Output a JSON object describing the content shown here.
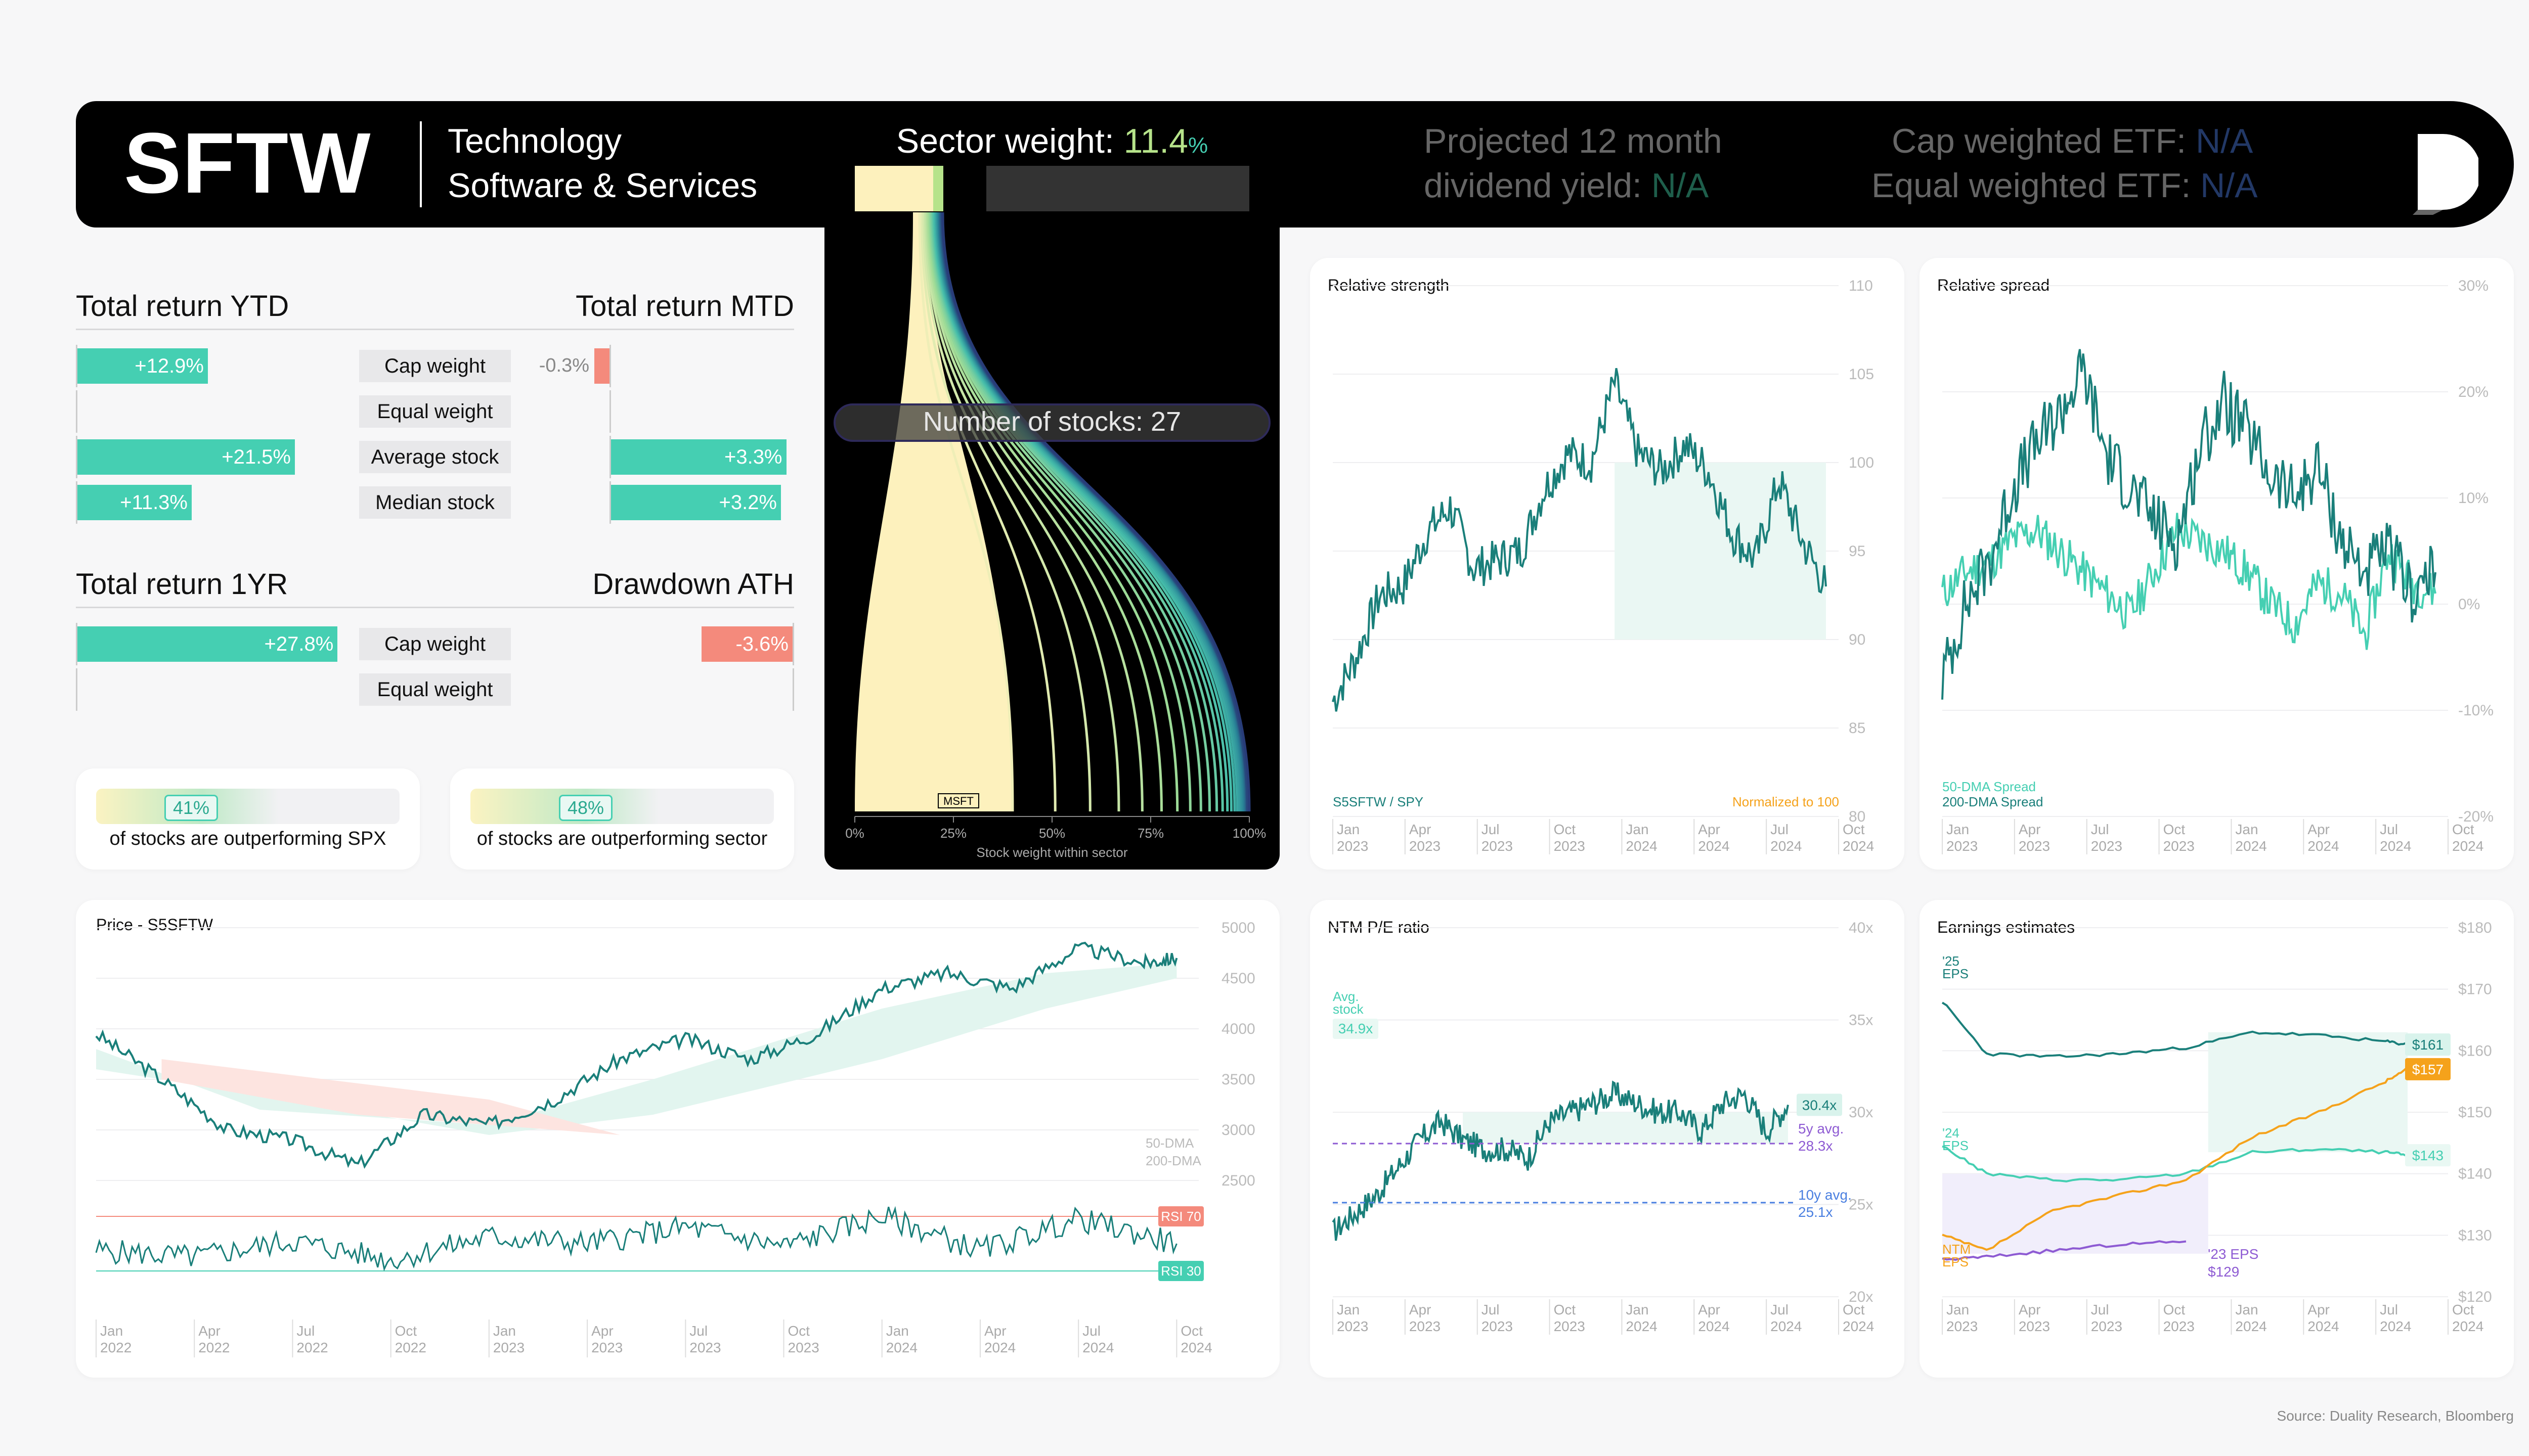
{
  "header": {
    "ticker": "SFTW",
    "sector": "Technology",
    "industry": "Software & Services",
    "sector_weight_label": "Sector weight:",
    "sector_weight_value": "11.4",
    "sector_weight_unit": "%",
    "sector_weight_fraction": 0.114,
    "dividend_line1": "Projected 12 month",
    "dividend_line2": "dividend yield:",
    "dividend_value": "N/A",
    "cap_etf_label": "Cap weighted ETF:",
    "cap_etf_value": "N/A",
    "eq_etf_label": "Equal weighted ETF:",
    "eq_etf_value": "N/A"
  },
  "returns": {
    "ytd_title": "Total return YTD",
    "mtd_title": "Total return MTD",
    "oneyr_title": "Total return 1YR",
    "ath_title": "Drawdown ATH",
    "rows": [
      {
        "label": "Cap weight",
        "ytd": "+12.9%",
        "ytd_value": 12.9,
        "mtd": "-0.3%",
        "mtd_value": -0.3
      },
      {
        "label": "Equal weight",
        "ytd": "",
        "ytd_value": null,
        "mtd": "",
        "mtd_value": null
      },
      {
        "label": "Average stock",
        "ytd": "+21.5%",
        "ytd_value": 21.5,
        "mtd": "+3.3%",
        "mtd_value": 3.3
      },
      {
        "label": "Median stock",
        "ytd": "+11.3%",
        "ytd_value": 11.3,
        "mtd": "+3.2%",
        "mtd_value": 3.2
      }
    ],
    "oneyr_rows": [
      {
        "label": "Cap weight",
        "oneyr": "+27.8%",
        "oneyr_value": 27.8,
        "ath": "-3.6%",
        "ath_value": -3.6
      },
      {
        "label": "Equal weight",
        "oneyr": "",
        "oneyr_value": null,
        "ath": "",
        "ath_value": null
      }
    ]
  },
  "breadth": [
    {
      "value": "41%",
      "fraction": 0.41,
      "text": "of stocks are outperforming SPX"
    },
    {
      "value": "48%",
      "fraction": 0.48,
      "text": "of stocks are outperforming sector"
    }
  ],
  "sector_card": {
    "num_stocks_label": "Number of stocks: 27",
    "num_stocks": 27,
    "top_stock": "MSFT",
    "xlabel": "Stock weight within sector",
    "ticks": [
      "0%",
      "25%",
      "50%",
      "75%",
      "100%"
    ]
  },
  "colors": {
    "teal": "#1a7f7a",
    "mint": "#45cfb2",
    "red": "#f48a7c",
    "orange": "#f5a21b",
    "purple": "#8e5bd3",
    "yellow": "#fdf1bd"
  },
  "source": "Source: Duality Research, Bloomberg",
  "chart_data": [
    {
      "id": "relative_strength",
      "type": "line",
      "title": "Relative strength",
      "series": [
        {
          "name": "S5SFTW / SPY",
          "x": [
            "2023-01",
            "2023-02",
            "2023-03",
            "2023-04",
            "2023-05",
            "2023-06",
            "2023-07",
            "2023-08",
            "2023-09",
            "2023-10",
            "2023-11",
            "2023-12",
            "2024-01",
            "2024-02",
            "2024-03",
            "2024-04",
            "2024-05",
            "2024-06",
            "2024-07",
            "2024-08",
            "2024-09",
            "2024-10"
          ],
          "values": [
            86.5,
            89,
            92.5,
            93,
            96,
            97.5,
            94,
            94.5,
            95,
            98.5,
            100.5,
            100,
            104.5,
            100.5,
            99.5,
            101,
            99.5,
            96,
            94.5,
            99,
            95.5,
            93
          ]
        }
      ],
      "note": "Normalized to 100",
      "ylim": [
        80,
        110
      ],
      "yticks": [
        "110",
        "105",
        "100",
        "95",
        "90",
        "85",
        "80"
      ],
      "xticks": [
        "Jan\n2023",
        "Apr\n2023",
        "Jul\n2023",
        "Oct\n2023",
        "Jan\n2024",
        "Apr\n2024",
        "Jul\n2024",
        "Oct\n2024"
      ]
    },
    {
      "id": "relative_spread",
      "type": "line",
      "title": "Relative spread",
      "series": [
        {
          "name": "50-DMA Spread",
          "x": [
            "2023-01",
            "2023-02",
            "2023-03",
            "2023-04",
            "2023-05",
            "2023-06",
            "2023-07",
            "2023-08",
            "2023-09",
            "2023-10",
            "2023-11",
            "2023-12",
            "2024-01",
            "2024-02",
            "2024-03",
            "2024-04",
            "2024-05",
            "2024-06",
            "2024-07",
            "2024-08",
            "2024-09",
            "2024-10"
          ],
          "values": [
            1,
            3,
            4,
            6,
            7,
            5,
            3,
            1,
            -1,
            3,
            7,
            6,
            5,
            3,
            0,
            -2,
            2,
            1,
            -3,
            5,
            2,
            1
          ]
        },
        {
          "name": "200-DMA Spread",
          "x": [
            "2023-01",
            "2023-02",
            "2023-03",
            "2023-04",
            "2023-05",
            "2023-06",
            "2023-07",
            "2023-08",
            "2023-09",
            "2023-10",
            "2023-11",
            "2023-12",
            "2024-01",
            "2024-02",
            "2024-03",
            "2024-04",
            "2024-05",
            "2024-06",
            "2024-07",
            "2024-08",
            "2024-09",
            "2024-10"
          ],
          "values": [
            -7,
            0,
            4,
            11,
            15,
            18,
            22,
            14,
            11,
            8,
            6,
            15,
            19,
            16,
            12,
            10,
            13,
            6,
            3,
            5,
            1,
            3
          ]
        }
      ],
      "ylim": [
        -20,
        30
      ],
      "yticks": [
        "30%",
        "20%",
        "10%",
        "0%",
        "-10%",
        "-20%"
      ],
      "xticks": [
        "Jan\n2023",
        "Apr\n2023",
        "Jul\n2023",
        "Oct\n2023",
        "Jan\n2024",
        "Apr\n2024",
        "Jul\n2024",
        "Oct\n2024"
      ]
    },
    {
      "id": "price",
      "type": "line",
      "title": "Price - S5SFTW",
      "series": [
        {
          "name": "Price",
          "x": [
            "2022-01",
            "2022-03",
            "2022-05",
            "2022-07",
            "2022-09",
            "2022-11",
            "2023-01",
            "2023-03",
            "2023-05",
            "2023-07",
            "2023-09",
            "2023-11",
            "2024-01",
            "2024-03",
            "2024-05",
            "2024-07",
            "2024-09",
            "2024-10"
          ],
          "values": [
            3950,
            3500,
            3000,
            2900,
            2650,
            3150,
            3050,
            3300,
            3700,
            3900,
            3700,
            3950,
            4400,
            4550,
            4400,
            4800,
            4650,
            4700
          ]
        },
        {
          "name": "50-DMA",
          "x": [
            "2022-01",
            "2022-06",
            "2023-01",
            "2023-06",
            "2024-01",
            "2024-06",
            "2024-10"
          ],
          "values": [
            3800,
            3200,
            3050,
            3500,
            4200,
            4550,
            4650
          ]
        },
        {
          "name": "200-DMA",
          "x": [
            "2022-01",
            "2022-06",
            "2023-01",
            "2023-06",
            "2024-01",
            "2024-06",
            "2024-10"
          ],
          "values": [
            3600,
            3350,
            2950,
            3150,
            3700,
            4200,
            4500
          ]
        },
        {
          "name": "RSI",
          "x": [
            "2022-01",
            "2022-04",
            "2022-07",
            "2022-10",
            "2023-01",
            "2023-04",
            "2023-07",
            "2023-10",
            "2024-01",
            "2024-04",
            "2024-07",
            "2024-10"
          ],
          "values": [
            45,
            40,
            52,
            38,
            55,
            50,
            62,
            48,
            70,
            45,
            68,
            50
          ]
        }
      ],
      "ylim": [
        2000,
        5000
      ],
      "yticks": [
        "5000",
        "4500",
        "4000",
        "3500",
        "3000",
        "2500"
      ],
      "labels": [
        "50-DMA",
        "200-DMA",
        "RSI 70",
        "RSI 30"
      ],
      "xticks": [
        "Jan\n2022",
        "Apr\n2022",
        "Jul\n2022",
        "Oct\n2022",
        "Jan\n2023",
        "Apr\n2023",
        "Jul\n2023",
        "Oct\n2023",
        "Jan\n2024",
        "Apr\n2024",
        "Jul\n2024",
        "Oct\n2024"
      ]
    },
    {
      "id": "ntm_pe",
      "type": "line",
      "title": "NTM P/E ratio",
      "series": [
        {
          "name": "NTM P/E",
          "x": [
            "2023-01",
            "2023-02",
            "2023-03",
            "2023-04",
            "2023-05",
            "2023-06",
            "2023-07",
            "2023-08",
            "2023-09",
            "2023-10",
            "2023-11",
            "2023-12",
            "2024-01",
            "2024-02",
            "2024-03",
            "2024-04",
            "2024-05",
            "2024-06",
            "2024-07",
            "2024-08",
            "2024-09",
            "2024-10"
          ],
          "values": [
            23.5,
            24.5,
            25.5,
            27,
            28.5,
            29.5,
            28.5,
            28,
            28,
            27.5,
            29.5,
            30,
            30.5,
            31,
            30.5,
            30,
            30,
            29,
            30.5,
            31,
            29,
            30.4
          ]
        }
      ],
      "ylim": [
        20,
        40
      ],
      "yticks": [
        "40x",
        "35x",
        "30x",
        "25x",
        "20x"
      ],
      "annotations": [
        {
          "label": "Avg. stock",
          "value": "34.9x"
        },
        {
          "label": "5y avg.",
          "value": "28.3x"
        },
        {
          "label": "10y avg.",
          "value": "25.1x"
        },
        {
          "label": "",
          "value": "30.4x"
        }
      ],
      "xticks": [
        "Jan\n2023",
        "Apr\n2023",
        "Jul\n2023",
        "Oct\n2023",
        "Jan\n2024",
        "Apr\n2024",
        "Jul\n2024",
        "Oct\n2024"
      ]
    },
    {
      "id": "earnings",
      "type": "line",
      "title": "Earnings estimates",
      "series": [
        {
          "name": "'25 EPS",
          "x": [
            "2023-01",
            "2023-03",
            "2023-06",
            "2023-09",
            "2023-12",
            "2024-03",
            "2024-06",
            "2024-09",
            "2024-10"
          ],
          "values": [
            168,
            159.5,
            159,
            159.5,
            160.5,
            163,
            162.5,
            161.5,
            161
          ]
        },
        {
          "name": "'24 EPS",
          "x": [
            "2023-01",
            "2023-03",
            "2023-06",
            "2023-09",
            "2023-12",
            "2024-03",
            "2024-06",
            "2024-09",
            "2024-10"
          ],
          "values": [
            144.5,
            140,
            139,
            139,
            140,
            143.5,
            144,
            143.5,
            143
          ]
        },
        {
          "name": "NTM EPS",
          "x": [
            "2023-01",
            "2023-03",
            "2023-06",
            "2023-09",
            "2023-12",
            "2024-03",
            "2024-06",
            "2024-09",
            "2024-10"
          ],
          "values": [
            130,
            127.5,
            134,
            136.5,
            139,
            146,
            150,
            155,
            157
          ]
        },
        {
          "name": "'23 EPS",
          "x": [
            "2023-01",
            "2023-03",
            "2023-06",
            "2023-09",
            "2023-12"
          ],
          "values": [
            126,
            126.5,
            127.5,
            128.5,
            129
          ]
        }
      ],
      "ylim": [
        120,
        180
      ],
      "yticks": [
        "$180",
        "$170",
        "$160",
        "$150",
        "$140",
        "$130",
        "$120"
      ],
      "value_labels": [
        "$161",
        "$157",
        "$143",
        "$129"
      ],
      "xticks": [
        "Jan\n2023",
        "Apr\n2023",
        "Jul\n2023",
        "Oct\n2023",
        "Jan\n2024",
        "Apr\n2024",
        "Jul\n2024",
        "Oct\n2024"
      ]
    }
  ]
}
